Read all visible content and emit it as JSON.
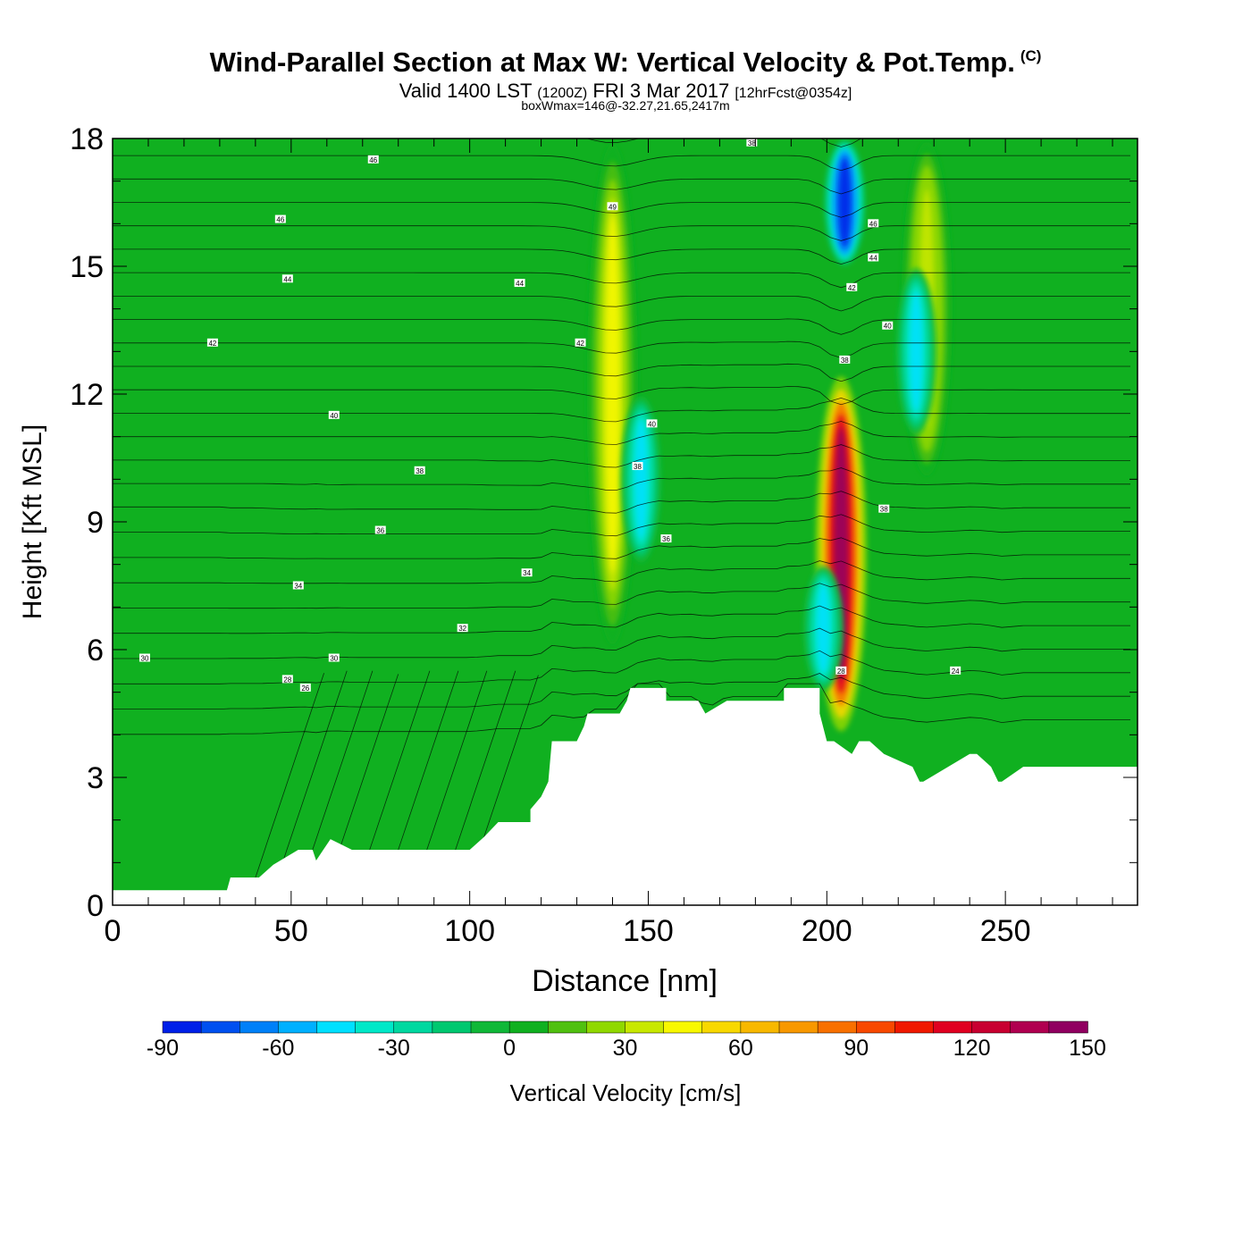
{
  "header": {
    "title": "Wind-Parallel Section at Max W: Vertical Velocity & Pot.Temp.",
    "copyright": "(C)",
    "subtitle_main": "Valid 1400 LST",
    "subtitle_utc": "(1200Z)",
    "subtitle_date": "FRI 3 Mar 2017",
    "subtitle_fcst": "[12hrFcst@0354z]",
    "subsubtitle": "boxWmax=146@-32.27,21.65,2417m"
  },
  "colors": {
    "background_field": "#10b020",
    "terrain": "#ffffff",
    "isentrope": "#000000"
  },
  "chart_data": {
    "type": "heatmap",
    "xlabel": "Distance [nm]",
    "ylabel": "Height [Kft MSL]",
    "xlim": [
      0,
      287
    ],
    "ylim": [
      0,
      18
    ],
    "x_ticks": [
      "0",
      "50",
      "100",
      "150",
      "200",
      "250"
    ],
    "y_ticks": [
      "0",
      "3",
      "6",
      "9",
      "12",
      "15",
      "18"
    ],
    "field": "Vertical Velocity [cm/s]",
    "max_w": 146,
    "colorbar": {
      "label": "Vertical Velocity [cm/s]",
      "tick_labels": [
        "-90",
        "-60",
        "-30",
        "0",
        "30",
        "60",
        "90",
        "120",
        "150"
      ],
      "levels": [
        -90,
        -80,
        -70,
        -60,
        -50,
        -40,
        -30,
        -20,
        -10,
        0,
        10,
        20,
        30,
        40,
        50,
        60,
        70,
        80,
        90,
        100,
        110,
        120,
        130,
        140,
        150
      ],
      "colors": [
        "#0020e8",
        "#0050f0",
        "#0080f8",
        "#00b0ff",
        "#00e0ff",
        "#00e8c8",
        "#00d8a0",
        "#00c870",
        "#10b838",
        "#10b020",
        "#50c010",
        "#90d800",
        "#c8e800",
        "#f8f800",
        "#f8d800",
        "#f8b800",
        "#f89800",
        "#f87000",
        "#f84800",
        "#f01800",
        "#e00020",
        "#c80030",
        "#b00050",
        "#900060"
      ]
    },
    "updraft_cores": [
      {
        "x": 204,
        "y_from": 4,
        "y_to": 12.5,
        "max_w": 146
      },
      {
        "x": 140,
        "y_from": 6,
        "y_to": 18,
        "max_w": 40
      },
      {
        "x": 228,
        "y_from": 10,
        "y_to": 18,
        "max_w": 35
      }
    ],
    "downdraft_cores": [
      {
        "x": 205,
        "y_from": 15,
        "y_to": 18,
        "min_w": -85
      },
      {
        "x": 199,
        "y_from": 5,
        "y_to": 8,
        "min_w": -50
      },
      {
        "x": 148,
        "y_from": 8,
        "y_to": 12,
        "min_w": -45
      },
      {
        "x": 225,
        "y_from": 11,
        "y_to": 15,
        "min_w": -45
      }
    ],
    "terrain_profile": {
      "x": [
        0,
        32,
        33,
        41,
        45,
        52,
        56,
        57,
        59,
        61,
        67,
        100,
        104,
        108,
        117,
        117,
        120,
        122,
        123,
        130,
        132,
        133,
        142,
        144,
        145,
        148,
        155,
        155,
        164,
        166,
        172,
        172,
        188,
        188,
        198,
        198,
        200,
        202,
        207,
        209,
        212,
        216,
        224,
        226,
        227,
        240,
        242,
        246,
        248,
        249,
        255,
        256,
        287
      ],
      "height_kft": [
        0.35,
        0.35,
        0.65,
        0.65,
        0.95,
        1.3,
        1.3,
        1.05,
        1.3,
        1.55,
        1.3,
        1.3,
        1.6,
        1.95,
        1.95,
        2.25,
        2.55,
        2.9,
        3.85,
        3.85,
        4.2,
        4.5,
        4.5,
        4.8,
        5.1,
        5.1,
        5.1,
        4.8,
        4.8,
        4.5,
        4.8,
        4.8,
        4.8,
        5.1,
        5.1,
        4.5,
        3.85,
        3.85,
        3.55,
        3.85,
        3.85,
        3.55,
        3.25,
        2.9,
        2.9,
        3.55,
        3.55,
        3.25,
        2.9,
        2.9,
        3.25,
        3.25,
        3.25
      ]
    },
    "isentrope_labels": [
      {
        "value": "46",
        "x": 73,
        "y": 17.5
      },
      {
        "value": "38",
        "x": 179,
        "y": 17.9
      },
      {
        "value": "46",
        "x": 47,
        "y": 16.1
      },
      {
        "value": "49",
        "x": 140,
        "y": 16.4
      },
      {
        "value": "46",
        "x": 213,
        "y": 16.0
      },
      {
        "value": "44",
        "x": 49,
        "y": 14.7
      },
      {
        "value": "44",
        "x": 114,
        "y": 14.6
      },
      {
        "value": "44",
        "x": 213,
        "y": 15.2
      },
      {
        "value": "42",
        "x": 207,
        "y": 14.5
      },
      {
        "value": "42",
        "x": 28,
        "y": 13.2
      },
      {
        "value": "42",
        "x": 131,
        "y": 13.2
      },
      {
        "value": "40",
        "x": 217,
        "y": 13.6
      },
      {
        "value": "38",
        "x": 205,
        "y": 12.8
      },
      {
        "value": "40",
        "x": 62,
        "y": 11.5
      },
      {
        "value": "40",
        "x": 151,
        "y": 11.3
      },
      {
        "value": "38",
        "x": 86,
        "y": 10.2
      },
      {
        "value": "38",
        "x": 147,
        "y": 10.3
      },
      {
        "value": "38",
        "x": 216,
        "y": 9.3
      },
      {
        "value": "36",
        "x": 75,
        "y": 8.8
      },
      {
        "value": "36",
        "x": 155,
        "y": 8.6
      },
      {
        "value": "34",
        "x": 52,
        "y": 7.5
      },
      {
        "value": "34",
        "x": 116,
        "y": 7.8
      },
      {
        "value": "32",
        "x": 98,
        "y": 6.5
      },
      {
        "value": "30",
        "x": 9,
        "y": 5.8
      },
      {
        "value": "30",
        "x": 62,
        "y": 5.8
      },
      {
        "value": "28",
        "x": 49,
        "y": 5.3
      },
      {
        "value": "26",
        "x": 54,
        "y": 5.1
      },
      {
        "value": "28",
        "x": 204,
        "y": 5.5
      },
      {
        "value": "24",
        "x": 236,
        "y": 5.5
      }
    ]
  }
}
